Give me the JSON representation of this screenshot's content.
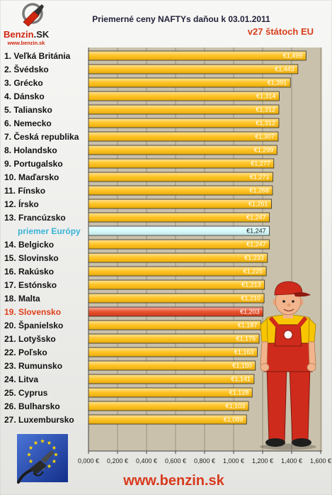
{
  "chart_data": {
    "type": "bar",
    "orientation": "horizontal",
    "title": "Priemerné ceny NAFTYs daňou k 03.01.2011",
    "subtitle": "v27 štátoch EU",
    "categories": [
      "1. Veľká Británia",
      "2. Švédsko",
      "3. Grécko",
      "4. Dánsko",
      "5. Taliansko",
      "6. Nemecko",
      "7. Česká republika",
      "8. Holandsko",
      "9. Portugalsko",
      "10. Maďarsko",
      "11. Fínsko",
      "12. Írsko",
      "13. Francúzsko",
      "priemer Európy",
      "14. Belgicko",
      "15. Slovinsko",
      "16. Rakúsko",
      "17. Estónsko",
      "18. Malta",
      "19. Slovensko",
      "20. Španielsko",
      "21. Lotyšsko",
      "22. Poľsko",
      "23. Rumunsko",
      "24. Litva",
      "25. Cyprus",
      "26. Bulharsko",
      "27. Luxembursko"
    ],
    "values": [
      1.499,
      1.443,
      1.391,
      1.314,
      1.312,
      1.312,
      1.307,
      1.299,
      1.277,
      1.271,
      1.268,
      1.261,
      1.247,
      1.247,
      1.247,
      1.233,
      1.225,
      1.213,
      1.21,
      1.203,
      1.187,
      1.176,
      1.163,
      1.15,
      1.141,
      1.128,
      1.103,
      1.089
    ],
    "value_labels": [
      "€1,499",
      "€1,443",
      "€1,391",
      "€1,314",
      "€1,312",
      "€1,312",
      "€1,307",
      "€1,299",
      "€1,277",
      "€1,271",
      "€1,268",
      "€1,261",
      "€1,247",
      "€1,247",
      "€1,247",
      "€1,233",
      "€1,225",
      "€1,213",
      "€1,210",
      "€1,203",
      "€1,187",
      "€1,176",
      "€1,163",
      "€1,150",
      "€1,141",
      "€1,128",
      "€1,103",
      "€1,089"
    ],
    "average_index": 13,
    "highlight_index": 19,
    "xlim": [
      0,
      1.6
    ],
    "x_ticks": [
      0,
      0.2,
      0.4,
      0.6,
      0.8,
      1.0,
      1.2,
      1.4,
      1.6
    ],
    "x_tick_labels": [
      "0,000 €",
      "0,200 €",
      "0,400 €",
      "0,600 €",
      "0,800 €",
      "1,000 €",
      "1,200 €",
      "1,400 €",
      "1,600 €"
    ],
    "grid": true,
    "colors": {
      "bar": "#ffbe0f",
      "bar_border": "#2b2b2b",
      "average_bar": "#d4fbfb",
      "highlight_bar": "#e5431c",
      "category_text": "#111111",
      "average_label": "#3ab4d8",
      "highlight_label": "#e0401a",
      "value_text": "#ffffff",
      "average_value_text": "#222222",
      "plot_background": "#c9c1ab",
      "gridline": "#8c8677"
    }
  },
  "logo": {
    "name": "Benzin",
    "tld": ".SK",
    "url": "www.benzin.sk"
  },
  "footer": {
    "url": "www.benzin.sk"
  },
  "icons": {
    "logo": "fuel-nozzle-icon",
    "badge": "eu-flag-icon"
  }
}
